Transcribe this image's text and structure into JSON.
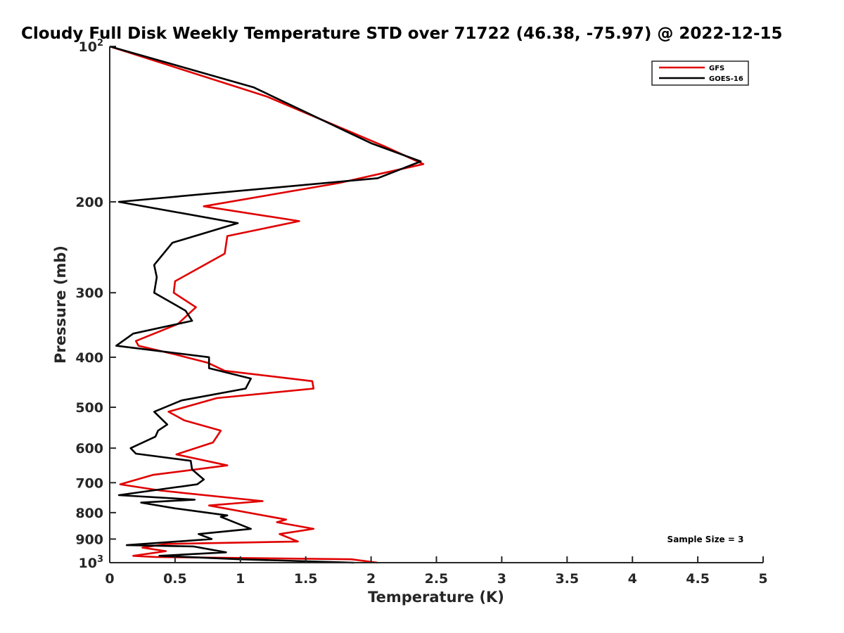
{
  "chart_data": {
    "type": "line",
    "title": "Cloudy Full Disk Weekly Temperature STD over 71722 (46.38, -75.97) @ 2022-12-15",
    "xlabel": "Temperature (K)",
    "ylabel": "Pressure (mb)",
    "xlim": [
      0,
      5
    ],
    "ylim": [
      1000,
      100
    ],
    "yscale": "log",
    "x_ticks": [
      0,
      0.5,
      1,
      1.5,
      2,
      2.5,
      3,
      3.5,
      4,
      4.5,
      5
    ],
    "x_tick_labels": [
      "0",
      "0.5",
      "1",
      "1.5",
      "2",
      "2.5",
      "3",
      "3.5",
      "4",
      "4.5",
      "5"
    ],
    "y_ticks": [
      100,
      200,
      300,
      400,
      500,
      600,
      700,
      800,
      900,
      1000
    ],
    "y_tick_labels": [
      {
        "base": "10",
        "exp": "2"
      },
      {
        "base": "200",
        "exp": ""
      },
      {
        "base": "300",
        "exp": ""
      },
      {
        "base": "400",
        "exp": ""
      },
      {
        "base": "500",
        "exp": ""
      },
      {
        "base": "600",
        "exp": ""
      },
      {
        "base": "700",
        "exp": ""
      },
      {
        "base": "800",
        "exp": ""
      },
      {
        "base": "900",
        "exp": ""
      },
      {
        "base": "10",
        "exp": "3"
      }
    ],
    "legend_position": "top-right",
    "annotation": "Sample Size = 3",
    "series": [
      {
        "name": "GFS",
        "color": "#e00000",
        "points": [
          [
            0,
            100
          ],
          [
            1.2,
            125
          ],
          [
            2.1,
            156
          ],
          [
            2.4,
            169
          ],
          [
            1.75,
            184
          ],
          [
            0.72,
            204
          ],
          [
            1.45,
            218
          ],
          [
            0.9,
            233
          ],
          [
            0.88,
            252
          ],
          [
            0.5,
            285
          ],
          [
            0.49,
            300
          ],
          [
            0.66,
            320
          ],
          [
            0.52,
            345
          ],
          [
            0.2,
            372
          ],
          [
            0.22,
            380
          ],
          [
            0.5,
            395
          ],
          [
            0.75,
            410
          ],
          [
            0.88,
            425
          ],
          [
            1.55,
            445
          ],
          [
            1.56,
            460
          ],
          [
            0.82,
            480
          ],
          [
            0.45,
            510
          ],
          [
            0.57,
            530
          ],
          [
            0.85,
            555
          ],
          [
            0.79,
            585
          ],
          [
            0.51,
            617
          ],
          [
            0.9,
            648
          ],
          [
            0.33,
            676
          ],
          [
            0.08,
            705
          ],
          [
            0.39,
            725
          ],
          [
            1.17,
            760
          ],
          [
            0.76,
            775
          ],
          [
            1.35,
            825
          ],
          [
            1.28,
            835
          ],
          [
            1.56,
            860
          ],
          [
            1.3,
            880
          ],
          [
            1.44,
            910
          ],
          [
            0.43,
            920
          ],
          [
            0.25,
            935
          ],
          [
            0.43,
            950
          ],
          [
            0.18,
            970
          ],
          [
            0.35,
            975
          ],
          [
            1.85,
            985
          ],
          [
            2.05,
            1000
          ]
        ]
      },
      {
        "name": "GOES-16",
        "color": "#000000",
        "points": [
          [
            0,
            100
          ],
          [
            1.1,
            120
          ],
          [
            2.0,
            154
          ],
          [
            2.38,
            167
          ],
          [
            2.05,
            180
          ],
          [
            0.07,
            200
          ],
          [
            0.98,
            220
          ],
          [
            0.48,
            240
          ],
          [
            0.34,
            265
          ],
          [
            0.36,
            280
          ],
          [
            0.34,
            300
          ],
          [
            0.58,
            325
          ],
          [
            0.63,
            340
          ],
          [
            0.18,
            360
          ],
          [
            0.05,
            380
          ],
          [
            0.76,
            400
          ],
          [
            0.76,
            420
          ],
          [
            1.08,
            440
          ],
          [
            1.04,
            460
          ],
          [
            0.55,
            485
          ],
          [
            0.34,
            510
          ],
          [
            0.44,
            540
          ],
          [
            0.37,
            555
          ],
          [
            0.35,
            570
          ],
          [
            0.16,
            600
          ],
          [
            0.2,
            615
          ],
          [
            0.62,
            635
          ],
          [
            0.63,
            660
          ],
          [
            0.72,
            690
          ],
          [
            0.67,
            705
          ],
          [
            0.07,
            740
          ],
          [
            0.65,
            755
          ],
          [
            0.24,
            765
          ],
          [
            0.5,
            785
          ],
          [
            0.9,
            810
          ],
          [
            0.85,
            815
          ],
          [
            1.08,
            860
          ],
          [
            0.68,
            880
          ],
          [
            0.78,
            900
          ],
          [
            0.13,
            925
          ],
          [
            0.64,
            930
          ],
          [
            0.89,
            955
          ],
          [
            0.38,
            970
          ],
          [
            1.0,
            985
          ],
          [
            1.87,
            1000
          ]
        ]
      }
    ]
  }
}
